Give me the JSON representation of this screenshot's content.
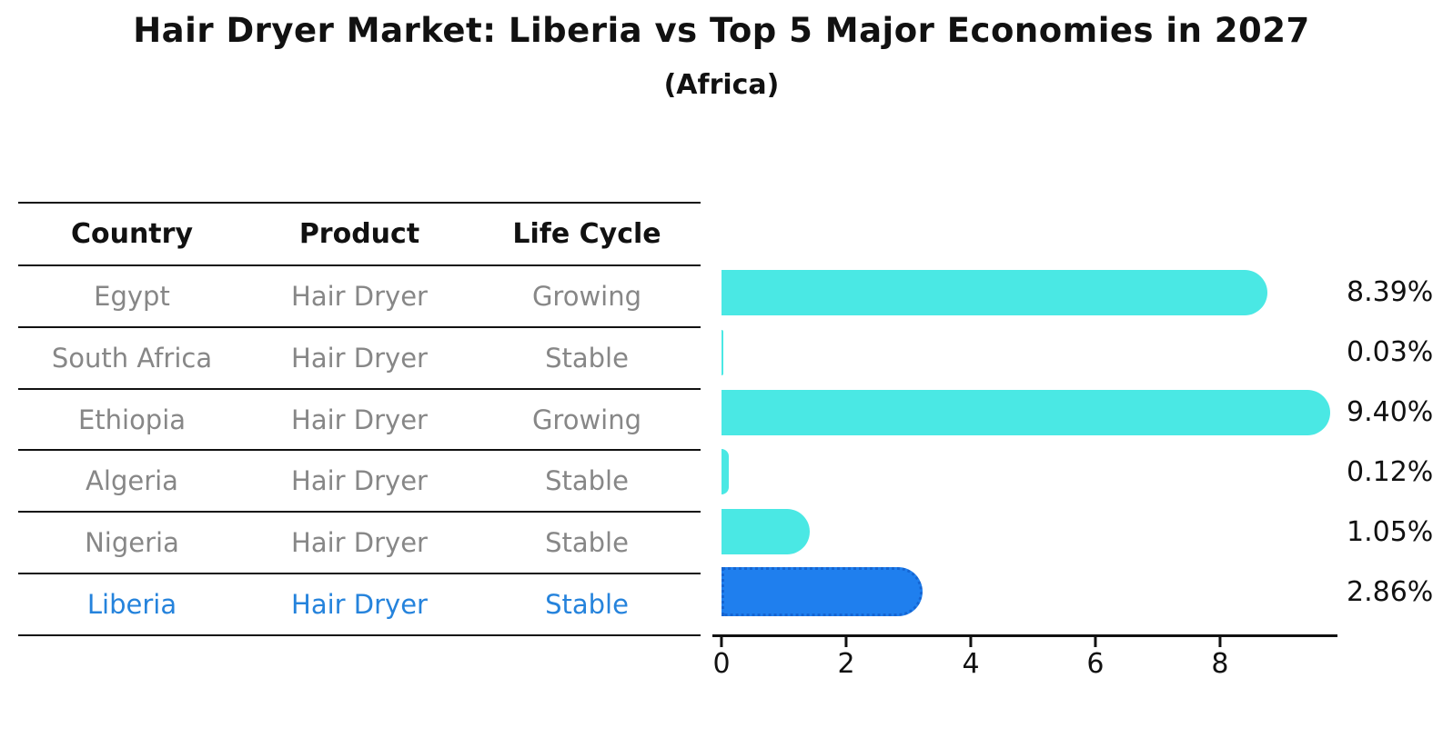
{
  "title": "Hair Dryer Market: Liberia vs Top 5 Major Economies in 2027",
  "subtitle": "(Africa)",
  "table": {
    "headers": [
      "Country",
      "Product",
      "Life Cycle"
    ],
    "rows": [
      {
        "country": "Egypt",
        "product": "Hair Dryer",
        "life_cycle": "Growing"
      },
      {
        "country": "South Africa",
        "product": "Hair Dryer",
        "life_cycle": "Stable"
      },
      {
        "country": "Ethiopia",
        "product": "Hair Dryer",
        "life_cycle": "Growing"
      },
      {
        "country": "Algeria",
        "product": "Hair Dryer",
        "life_cycle": "Stable"
      },
      {
        "country": "Nigeria",
        "product": "Hair Dryer",
        "life_cycle": "Stable"
      },
      {
        "country": "Liberia",
        "product": "Hair Dryer",
        "life_cycle": "Stable"
      }
    ],
    "highlighted_row": "Liberia"
  },
  "chart_data": {
    "type": "bar",
    "orientation": "horizontal",
    "title": "Hair Dryer Market: Liberia vs Top 5 Major Economies in 2027",
    "subtitle": "(Africa)",
    "categories": [
      "Egypt",
      "South Africa",
      "Ethiopia",
      "Algeria",
      "Nigeria",
      "Liberia"
    ],
    "values": [
      8.39,
      0.03,
      9.4,
      0.12,
      1.05,
      2.86
    ],
    "value_labels": [
      "8.39%",
      "0.03%",
      "9.40%",
      "0.12%",
      "1.05%",
      "2.86%"
    ],
    "unit": "%",
    "x_ticks": [
      "0",
      "2",
      "4",
      "6",
      "8"
    ],
    "x_tick_values": [
      0,
      2,
      4,
      6,
      8
    ],
    "xlim": [
      0,
      9.87
    ],
    "highlight_index": 5,
    "grid": false,
    "legend": "none"
  },
  "colors": {
    "bar_default": "#4AE8E4",
    "bar_highlight": "#1F7FEE",
    "bar_highlight_border": "#1565D2",
    "highlight_text": "#2583DC",
    "table_text": "#878787",
    "heading_text": "#111111",
    "axis": "#111111"
  }
}
